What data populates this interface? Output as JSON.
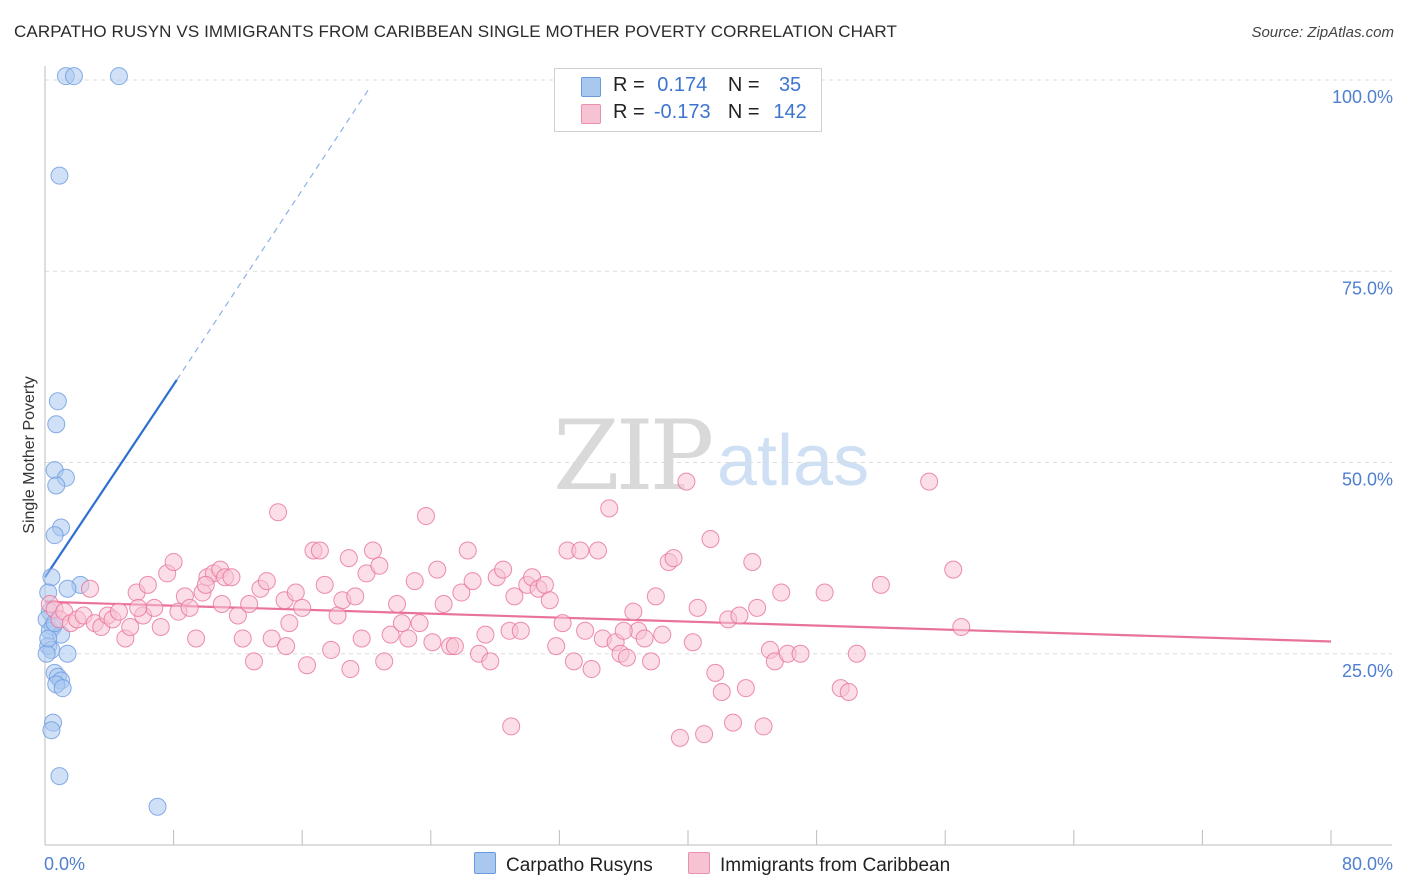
{
  "title": "CARPATHO RUSYN VS IMMIGRANTS FROM CARIBBEAN SINGLE MOTHER POVERTY CORRELATION CHART",
  "source": "Source: ZipAtlas.com",
  "watermark": {
    "zip": "ZIP",
    "atlas": "atlas"
  },
  "legend": {
    "rows": [
      {
        "r_label": "R =",
        "r_value": "0.174",
        "n_label": "N =",
        "n_value": "35",
        "color": "#a9c8f0",
        "border": "#6b9ae0"
      },
      {
        "r_label": "R =",
        "r_value": "-0.173",
        "n_label": "N =",
        "n_value": "142",
        "color": "#f7c3d3",
        "border": "#e890ad"
      }
    ]
  },
  "bottom_legend": {
    "items": [
      {
        "label": "Carpatho Rusyns",
        "color": "#a9c8f0",
        "border": "#6b9ae0"
      },
      {
        "label": "Immigrants from Caribbean",
        "color": "#f7c3d3",
        "border": "#e890ad"
      }
    ]
  },
  "chart_data": {
    "type": "scatter",
    "title": "CARPATHO RUSYN VS IMMIGRANTS FROM CARIBBEAN SINGLE MOTHER POVERTY CORRELATION CHART",
    "xlabel": "",
    "ylabel": "Single Mother Poverty",
    "xlim": [
      0,
      80
    ],
    "ylim": [
      0,
      100
    ],
    "x_tick_labels": [
      "0.0%",
      "80.0%"
    ],
    "y_tick_labels": [
      "25.0%",
      "50.0%",
      "75.0%",
      "100.0%"
    ],
    "y_ticks": [
      25,
      50,
      75,
      100
    ],
    "series": [
      {
        "name": "Carpatho Rusyns",
        "color": "#6b9ae0",
        "fill": "#a9c8f0",
        "r": 0.174,
        "n": 35,
        "trend": {
          "x0": 0.0,
          "y0": 35.0,
          "x1": 8.2,
          "y1": 60.8,
          "dash_to_x": 20.2,
          "dash_to_y": 99.0
        },
        "points": [
          [
            1.3,
            100.5
          ],
          [
            1.8,
            100.5
          ],
          [
            4.6,
            100.5
          ],
          [
            0.9,
            87.5
          ],
          [
            0.8,
            58.0
          ],
          [
            0.7,
            55.0
          ],
          [
            0.6,
            49.0
          ],
          [
            1.3,
            48.0
          ],
          [
            0.7,
            47.0
          ],
          [
            1.0,
            41.5
          ],
          [
            0.6,
            40.5
          ],
          [
            0.4,
            35.0
          ],
          [
            2.2,
            34.0
          ],
          [
            1.4,
            33.5
          ],
          [
            0.2,
            33.0
          ],
          [
            0.3,
            30.5
          ],
          [
            0.1,
            29.5
          ],
          [
            0.5,
            28.5
          ],
          [
            0.3,
            28.0
          ],
          [
            1.0,
            27.5
          ],
          [
            0.2,
            26.0
          ],
          [
            0.4,
            25.5
          ],
          [
            0.1,
            25.0
          ],
          [
            1.4,
            25.0
          ],
          [
            0.6,
            22.5
          ],
          [
            0.8,
            22.0
          ],
          [
            1.0,
            21.5
          ],
          [
            0.7,
            21.0
          ],
          [
            1.1,
            20.5
          ],
          [
            0.5,
            16.0
          ],
          [
            0.4,
            15.0
          ],
          [
            0.9,
            9.0
          ],
          [
            7.0,
            5.0
          ],
          [
            0.2,
            27.0
          ],
          [
            0.6,
            29.0
          ]
        ]
      },
      {
        "name": "Immigrants from Caribbean",
        "color": "#e8729a",
        "fill": "#f7c3d3",
        "r": -0.173,
        "n": 142,
        "trend": {
          "x0": 0.0,
          "y0": 31.8,
          "x1": 80.0,
          "y1": 26.6
        },
        "points": [
          [
            0.3,
            31.5
          ],
          [
            0.6,
            30.8
          ],
          [
            0.9,
            29.5
          ],
          [
            1.2,
            30.5
          ],
          [
            1.6,
            29.0
          ],
          [
            2.0,
            29.5
          ],
          [
            2.4,
            30.0
          ],
          [
            2.8,
            33.5
          ],
          [
            3.1,
            29.0
          ],
          [
            3.5,
            28.5
          ],
          [
            3.9,
            30.0
          ],
          [
            4.2,
            29.5
          ],
          [
            4.6,
            30.5
          ],
          [
            5.0,
            27.0
          ],
          [
            5.3,
            28.5
          ],
          [
            5.7,
            33.0
          ],
          [
            6.1,
            30.0
          ],
          [
            6.4,
            34.0
          ],
          [
            6.8,
            31.0
          ],
          [
            7.2,
            28.5
          ],
          [
            7.6,
            35.5
          ],
          [
            8.0,
            37.0
          ],
          [
            8.3,
            30.5
          ],
          [
            8.7,
            32.5
          ],
          [
            9.0,
            31.0
          ],
          [
            9.4,
            27.0
          ],
          [
            9.8,
            33.0
          ],
          [
            10.1,
            35.0
          ],
          [
            10.5,
            35.5
          ],
          [
            10.9,
            36.0
          ],
          [
            11.2,
            35.0
          ],
          [
            11.6,
            35.0
          ],
          [
            12.0,
            30.0
          ],
          [
            12.3,
            27.0
          ],
          [
            12.7,
            31.5
          ],
          [
            13.0,
            24.0
          ],
          [
            13.4,
            33.5
          ],
          [
            13.8,
            34.5
          ],
          [
            14.1,
            27.0
          ],
          [
            14.5,
            43.5
          ],
          [
            14.9,
            32.0
          ],
          [
            15.2,
            29.0
          ],
          [
            15.6,
            33.0
          ],
          [
            16.0,
            31.0
          ],
          [
            16.3,
            23.5
          ],
          [
            16.7,
            38.5
          ],
          [
            17.1,
            38.5
          ],
          [
            17.4,
            34.0
          ],
          [
            17.8,
            25.5
          ],
          [
            18.2,
            30.0
          ],
          [
            18.5,
            32.0
          ],
          [
            18.9,
            37.5
          ],
          [
            19.3,
            32.5
          ],
          [
            19.7,
            27.0
          ],
          [
            20.0,
            35.5
          ],
          [
            20.4,
            38.5
          ],
          [
            20.8,
            36.5
          ],
          [
            21.1,
            24.0
          ],
          [
            21.5,
            27.5
          ],
          [
            21.9,
            31.5
          ],
          [
            22.2,
            29.0
          ],
          [
            22.6,
            27.0
          ],
          [
            23.0,
            34.5
          ],
          [
            23.3,
            29.0
          ],
          [
            23.7,
            43.0
          ],
          [
            24.1,
            26.5
          ],
          [
            24.4,
            36.0
          ],
          [
            24.8,
            31.5
          ],
          [
            25.2,
            26.0
          ],
          [
            25.5,
            26.0
          ],
          [
            25.9,
            33.0
          ],
          [
            26.3,
            38.5
          ],
          [
            26.6,
            34.5
          ],
          [
            27.0,
            25.0
          ],
          [
            27.4,
            27.5
          ],
          [
            27.7,
            24.0
          ],
          [
            28.1,
            35.0
          ],
          [
            28.5,
            36.0
          ],
          [
            28.9,
            28.0
          ],
          [
            29.2,
            32.5
          ],
          [
            29.6,
            28.0
          ],
          [
            30.0,
            34.0
          ],
          [
            30.3,
            35.0
          ],
          [
            30.7,
            33.5
          ],
          [
            31.1,
            34.0
          ],
          [
            31.4,
            32.0
          ],
          [
            31.8,
            26.0
          ],
          [
            32.2,
            29.0
          ],
          [
            32.5,
            38.5
          ],
          [
            32.9,
            24.0
          ],
          [
            33.3,
            38.5
          ],
          [
            33.6,
            28.0
          ],
          [
            34.0,
            23.0
          ],
          [
            34.4,
            38.5
          ],
          [
            34.7,
            27.0
          ],
          [
            35.1,
            44.0
          ],
          [
            35.5,
            26.5
          ],
          [
            35.8,
            25.0
          ],
          [
            36.2,
            24.5
          ],
          [
            36.6,
            30.5
          ],
          [
            36.9,
            28.0
          ],
          [
            37.3,
            27.0
          ],
          [
            37.7,
            24.0
          ],
          [
            38.0,
            32.5
          ],
          [
            38.4,
            27.5
          ],
          [
            38.8,
            37.0
          ],
          [
            39.1,
            37.5
          ],
          [
            39.5,
            14.0
          ],
          [
            39.9,
            47.5
          ],
          [
            40.3,
            26.5
          ],
          [
            40.6,
            31.0
          ],
          [
            41.0,
            14.5
          ],
          [
            41.4,
            40.0
          ],
          [
            41.7,
            22.5
          ],
          [
            42.1,
            20.0
          ],
          [
            42.5,
            29.5
          ],
          [
            42.8,
            16.0
          ],
          [
            43.2,
            30.0
          ],
          [
            43.6,
            20.5
          ],
          [
            44.0,
            37.0
          ],
          [
            44.3,
            31.0
          ],
          [
            44.7,
            15.5
          ],
          [
            45.1,
            25.5
          ],
          [
            45.4,
            24.0
          ],
          [
            45.8,
            33.0
          ],
          [
            46.2,
            25.0
          ],
          [
            47.0,
            25.0
          ],
          [
            48.5,
            33.0
          ],
          [
            49.5,
            20.5
          ],
          [
            50.0,
            20.0
          ],
          [
            50.5,
            25.0
          ],
          [
            52.0,
            34.0
          ],
          [
            55.0,
            47.5
          ],
          [
            56.5,
            36.0
          ],
          [
            57.0,
            28.5
          ],
          [
            29.0,
            15.5
          ],
          [
            36.0,
            28.0
          ],
          [
            19.0,
            23.0
          ],
          [
            15.0,
            26.0
          ],
          [
            10.0,
            34.0
          ],
          [
            11.0,
            31.5
          ],
          [
            5.8,
            31.0
          ]
        ]
      }
    ]
  }
}
